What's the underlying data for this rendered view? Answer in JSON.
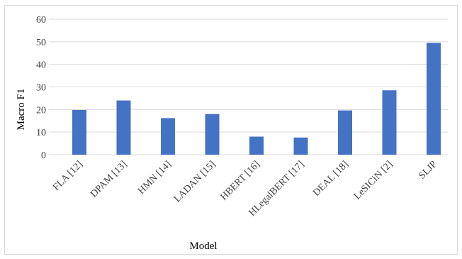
{
  "chart_data": {
    "type": "bar",
    "title": "",
    "xlabel": "Model",
    "ylabel": "Macro F1",
    "categories": [
      "FLA [12]",
      "DPAM [13]",
      "HMN [14]",
      "LADAN [15]",
      "HBERT [16]",
      "HLegalBERT [17]",
      "DEAL [18]",
      "LeSICiN [2]",
      "SLJP"
    ],
    "values": [
      19.8,
      24.0,
      16.2,
      18.0,
      8.0,
      7.6,
      19.6,
      28.5,
      49.5
    ],
    "ylim": [
      0,
      60
    ],
    "yticks": [
      0,
      10,
      20,
      30,
      40,
      50,
      60
    ],
    "grid": true,
    "legend": "none",
    "bar_color": "#4472C4",
    "grid_color": "#d9d9d9"
  }
}
